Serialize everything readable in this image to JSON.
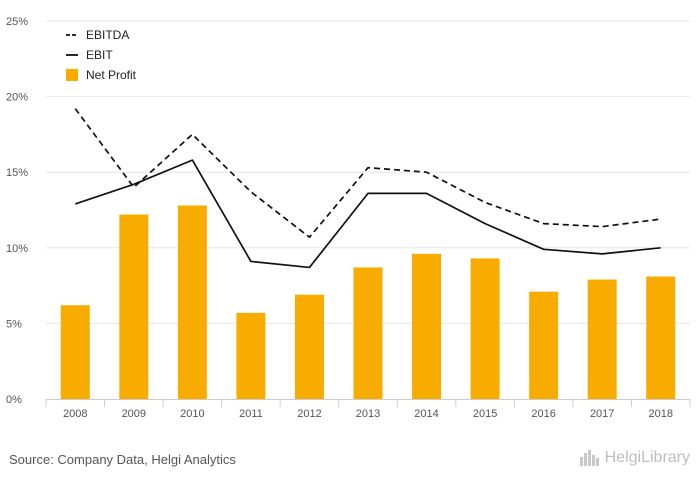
{
  "chart_data": {
    "type": "bar+line",
    "categories": [
      "2008",
      "2009",
      "2010",
      "2011",
      "2012",
      "2013",
      "2014",
      "2015",
      "2016",
      "2017",
      "2018"
    ],
    "series": [
      {
        "name": "EBITDA",
        "kind": "line",
        "style": "dashed",
        "color": "#111111",
        "values": [
          19.2,
          14.0,
          17.5,
          13.7,
          10.7,
          15.3,
          15.0,
          13.0,
          11.6,
          11.4,
          11.9
        ]
      },
      {
        "name": "EBIT",
        "kind": "line",
        "style": "solid",
        "color": "#111111",
        "values": [
          12.9,
          14.2,
          15.8,
          9.1,
          8.7,
          13.6,
          13.6,
          11.6,
          9.9,
          9.6,
          10.0
        ]
      },
      {
        "name": "Net Profit",
        "kind": "bar",
        "color": "#f8ac00",
        "values": [
          6.2,
          12.2,
          12.8,
          5.7,
          6.9,
          8.7,
          9.6,
          9.3,
          7.1,
          7.9,
          8.1
        ]
      }
    ],
    "yticks": [
      "0%",
      "5%",
      "10%",
      "15%",
      "20%",
      "25%"
    ],
    "ylim": [
      0,
      25
    ],
    "grid": true,
    "legend_position": "top-left",
    "title": "",
    "xlabel": "",
    "ylabel": ""
  },
  "footer": {
    "source": "Source: Company Data, Helgi Analytics",
    "brand": "HelgiLibrary"
  }
}
